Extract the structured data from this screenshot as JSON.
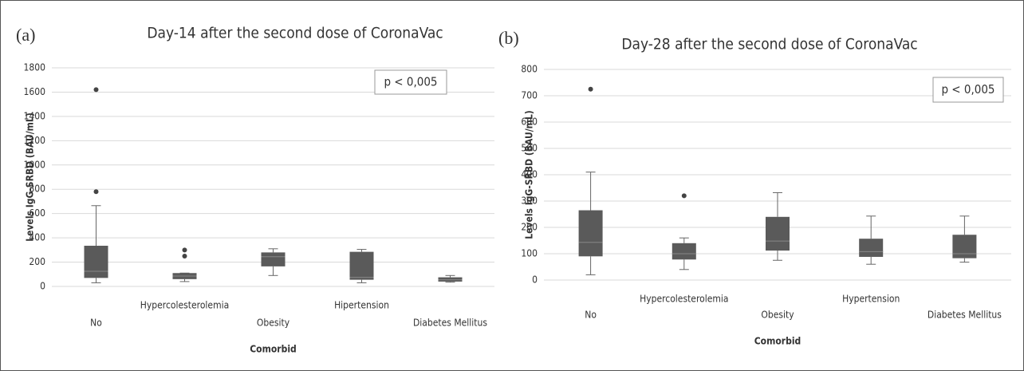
{
  "charts": [
    {
      "type": "box",
      "panel_label": "(a)",
      "title": "Day-14 after the second dose of CoronaVac",
      "y_label": "Levels  IgG-SRBD (BAU/mL)",
      "x_label": "Comorbid",
      "annotation": "p < 0,005",
      "categories": [
        "No",
        "Hypercolesterolemia",
        "Obesity",
        "Hipertension",
        "Diabetes Mellitus"
      ],
      "color": "#5a5a5a",
      "grid": true,
      "ylim": [
        0,
        1800
      ],
      "yticks": [
        0,
        200,
        400,
        600,
        800,
        1000,
        1200,
        1400,
        1600,
        1800
      ],
      "boxes": [
        {
          "min": 30,
          "q1": 70,
          "median": 125,
          "q3": 335,
          "max": 665,
          "outliers": [
            780,
            1620
          ]
        },
        {
          "min": 40,
          "q1": 60,
          "median": 85,
          "q3": 110,
          "max": 110,
          "outliers": [
            250,
            300
          ]
        },
        {
          "min": 90,
          "q1": 165,
          "median": 245,
          "q3": 280,
          "max": 310,
          "outliers": []
        },
        {
          "min": 30,
          "q1": 55,
          "median": 75,
          "q3": 285,
          "max": 305,
          "outliers": []
        },
        {
          "min": 35,
          "q1": 40,
          "median": 55,
          "q3": 75,
          "max": 90,
          "outliers": []
        }
      ]
    },
    {
      "type": "box",
      "panel_label": "(b)",
      "title": "Day-28 after the second dose of CoronaVac",
      "y_label": "Levels  IgG-SRBD (BAU/mL)",
      "x_label": "Comorbid",
      "annotation": "p < 0,005",
      "categories": [
        "No",
        "Hypercolesterolemia",
        "Obesity",
        "Hypertension",
        "Diabetes Mellitus"
      ],
      "color": "#5a5a5a",
      "grid": true,
      "ylim": [
        0,
        800
      ],
      "yticks": [
        0,
        100,
        200,
        300,
        400,
        500,
        600,
        700,
        800
      ],
      "boxes": [
        {
          "min": 20,
          "q1": 90,
          "median": 143,
          "q3": 265,
          "max": 410,
          "outliers": [
            725
          ]
        },
        {
          "min": 40,
          "q1": 78,
          "median": 100,
          "q3": 140,
          "max": 160,
          "outliers": [
            320
          ]
        },
        {
          "min": 75,
          "q1": 112,
          "median": 148,
          "q3": 240,
          "max": 332,
          "outliers": []
        },
        {
          "min": 60,
          "q1": 88,
          "median": 108,
          "q3": 157,
          "max": 243,
          "outliers": []
        },
        {
          "min": 68,
          "q1": 83,
          "median": 100,
          "q3": 172,
          "max": 243,
          "outliers": []
        }
      ]
    }
  ]
}
